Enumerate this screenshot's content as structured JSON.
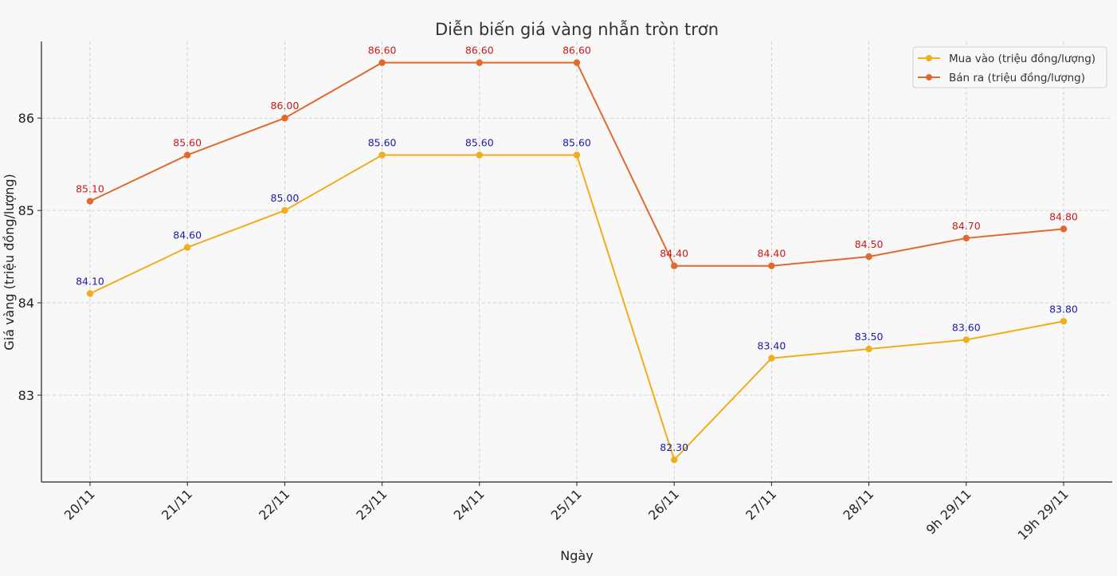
{
  "chart_data": {
    "type": "line",
    "title": "Diễn biến giá vàng nhẫn tròn trơn",
    "xlabel": "Ngày",
    "ylabel": "Giá vàng (triệu đồng/lượng)",
    "categories": [
      "20/11",
      "21/11",
      "22/11",
      "23/11",
      "24/11",
      "25/11",
      "26/11",
      "27/11",
      "28/11",
      "9h 29/11",
      "19h 29/11"
    ],
    "ylim": [
      82.06,
      86.83
    ],
    "yticks": [
      83,
      84,
      85,
      86
    ],
    "grid": true,
    "legend_position": "top-right",
    "series": [
      {
        "name": "Mua vào (triệu đồng/lượng)",
        "color": "#f0ad1c",
        "label_color": "#1b1ba8",
        "values": [
          84.1,
          84.6,
          85.0,
          85.6,
          85.6,
          85.6,
          82.3,
          83.4,
          83.5,
          83.6,
          83.8
        ],
        "labels": [
          "84.10",
          "84.60",
          "85.00",
          "85.60",
          "85.60",
          "85.60",
          "82.30",
          "83.40",
          "83.50",
          "83.60",
          "83.80"
        ]
      },
      {
        "name": "Bán ra (triệu đồng/lượng)",
        "color": "#e2692c",
        "label_color": "#cc1a1a",
        "values": [
          85.1,
          85.6,
          86.0,
          86.6,
          86.6,
          86.6,
          84.4,
          84.4,
          84.5,
          84.7,
          84.8
        ],
        "labels": [
          "85.10",
          "85.60",
          "86.00",
          "86.60",
          "86.60",
          "86.60",
          "84.40",
          "84.40",
          "84.50",
          "84.70",
          "84.80"
        ]
      }
    ]
  }
}
